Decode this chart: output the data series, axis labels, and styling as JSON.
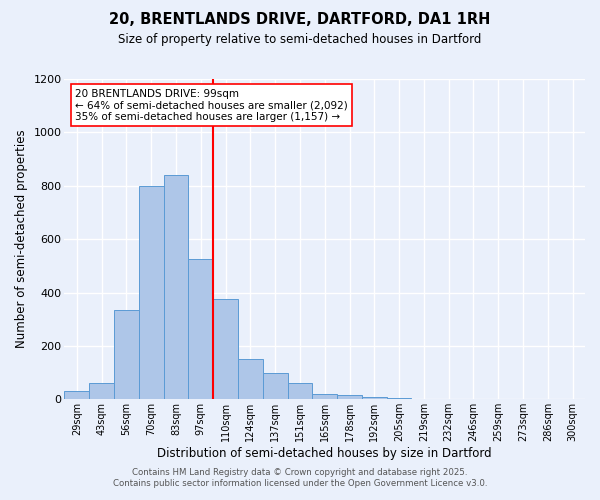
{
  "title_line1": "20, BRENTLANDS DRIVE, DARTFORD, DA1 1RH",
  "title_line2": "Size of property relative to semi-detached houses in Dartford",
  "xlabel": "Distribution of semi-detached houses by size in Dartford",
  "ylabel_text": "Number of semi-detached properties",
  "categories": [
    "29sqm",
    "43sqm",
    "56sqm",
    "70sqm",
    "83sqm",
    "97sqm",
    "110sqm",
    "124sqm",
    "137sqm",
    "151sqm",
    "165sqm",
    "178sqm",
    "192sqm",
    "205sqm",
    "219sqm",
    "232sqm",
    "246sqm",
    "259sqm",
    "273sqm",
    "286sqm",
    "300sqm"
  ],
  "values": [
    30,
    60,
    335,
    800,
    840,
    525,
    375,
    150,
    100,
    60,
    20,
    15,
    10,
    5,
    0,
    0,
    0,
    0,
    0,
    0,
    0
  ],
  "bar_color": "#aec6e8",
  "bar_edge_color": "#5b9bd5",
  "vline_x": 5.5,
  "vline_color": "red",
  "annotation_title": "20 BRENTLANDS DRIVE: 99sqm",
  "annotation_line2": "← 64% of semi-detached houses are smaller (2,092)",
  "annotation_line3": "35% of semi-detached houses are larger (1,157) →",
  "ylim": [
    0,
    1200
  ],
  "yticks": [
    0,
    200,
    400,
    600,
    800,
    1000,
    1200
  ],
  "footer_line1": "Contains HM Land Registry data © Crown copyright and database right 2025.",
  "footer_line2": "Contains public sector information licensed under the Open Government Licence v3.0.",
  "background_color": "#eaf0fb",
  "plot_background": "#eaf0fb",
  "grid_color": "white"
}
